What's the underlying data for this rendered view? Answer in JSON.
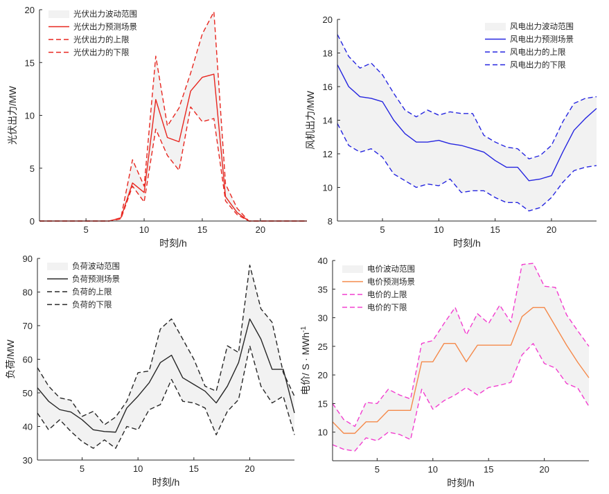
{
  "chart_data": [
    {
      "type": "area",
      "title": "",
      "xlabel": "时刻/h",
      "ylabel": "光伏出力/MW",
      "xlim": [
        1,
        24
      ],
      "ylim": [
        0,
        20
      ],
      "xticks": [
        5,
        10,
        15,
        20
      ],
      "yticks": [
        0,
        5,
        10,
        15,
        20
      ],
      "legend_position": "top-left",
      "x": [
        1,
        2,
        3,
        4,
        5,
        6,
        7,
        8,
        9,
        10,
        11,
        12,
        13,
        14,
        15,
        16,
        17,
        18,
        19,
        20,
        21,
        22,
        23,
        24
      ],
      "band": {
        "name": "光伏出力波动范围",
        "color": "#f2f2f2",
        "upper": [
          0,
          0,
          0,
          0,
          0,
          0,
          0,
          0.3,
          5.8,
          3.3,
          15.6,
          9.0,
          10.7,
          14.0,
          17.7,
          19.8,
          3.5,
          1.2,
          0,
          0,
          0,
          0,
          0,
          0
        ],
        "lower": [
          0,
          0,
          0,
          0,
          0,
          0,
          0,
          0.2,
          3.3,
          1.8,
          8.7,
          6.2,
          4.8,
          10.8,
          9.4,
          9.7,
          1.9,
          0.6,
          0,
          0,
          0,
          0,
          0,
          0
        ]
      },
      "series": [
        {
          "name": "光伏出力预测场景",
          "style": "solid",
          "color": "#e8261f",
          "values": [
            0,
            0,
            0,
            0,
            0,
            0,
            0,
            0.3,
            3.6,
            2.7,
            11.5,
            7.9,
            7.5,
            12.3,
            13.6,
            13.9,
            2.3,
            0.8,
            0,
            0,
            0,
            0,
            0,
            0
          ]
        },
        {
          "name": "光伏出力的上限",
          "style": "dashed",
          "color": "#e8261f",
          "values": [
            0,
            0,
            0,
            0,
            0,
            0,
            0,
            0.3,
            5.8,
            3.3,
            15.6,
            9.0,
            10.7,
            14.0,
            17.7,
            19.8,
            3.5,
            1.2,
            0,
            0,
            0,
            0,
            0,
            0
          ]
        },
        {
          "name": "光伏出力的下限",
          "style": "dashed",
          "color": "#e8261f",
          "values": [
            0,
            0,
            0,
            0,
            0,
            0,
            0,
            0.2,
            3.3,
            1.8,
            8.7,
            6.2,
            4.8,
            10.8,
            9.4,
            9.7,
            1.9,
            0.6,
            0,
            0,
            0,
            0,
            0,
            0
          ]
        }
      ]
    },
    {
      "type": "area",
      "title": "",
      "xlabel": "时刻/h",
      "ylabel": "风机出力/MW",
      "xlim": [
        1,
        24
      ],
      "ylim": [
        8,
        20
      ],
      "xticks": [
        5,
        10,
        15,
        20
      ],
      "yticks": [
        8,
        10,
        12,
        14,
        16,
        18,
        20
      ],
      "legend_position": "top-right",
      "x": [
        1,
        2,
        3,
        4,
        5,
        6,
        7,
        8,
        9,
        10,
        11,
        12,
        13,
        14,
        15,
        16,
        17,
        18,
        19,
        20,
        21,
        22,
        23,
        24
      ],
      "band": {
        "name": "风电出力波动范围",
        "color": "#f2f2f2",
        "upper": [
          19.1,
          17.8,
          17.1,
          17.4,
          16.7,
          15.6,
          14.6,
          14.2,
          14.6,
          14.3,
          14.5,
          14.4,
          14.4,
          13.1,
          12.7,
          12.4,
          12.3,
          11.7,
          11.9,
          12.5,
          13.9,
          15.0,
          15.3,
          15.4
        ],
        "lower": [
          13.8,
          12.5,
          12.1,
          12.3,
          11.8,
          10.8,
          10.4,
          10.0,
          10.2,
          10.1,
          10.5,
          9.7,
          9.8,
          9.8,
          9.4,
          9.1,
          9.1,
          8.6,
          8.8,
          9.4,
          10.3,
          11.0,
          11.2,
          11.3
        ]
      },
      "series": [
        {
          "name": "风电出力预测场景",
          "style": "solid",
          "color": "#2525e0",
          "values": [
            17.3,
            16.0,
            15.4,
            15.3,
            15.1,
            14.0,
            13.2,
            12.7,
            12.7,
            12.8,
            12.6,
            12.5,
            12.3,
            12.1,
            11.6,
            11.2,
            11.2,
            10.4,
            10.5,
            10.7,
            12.1,
            13.4,
            14.1,
            14.7
          ]
        },
        {
          "name": "风电出力的上限",
          "style": "dashed",
          "color": "#2525e0",
          "values": [
            19.1,
            17.8,
            17.1,
            17.4,
            16.7,
            15.6,
            14.6,
            14.2,
            14.6,
            14.3,
            14.5,
            14.4,
            14.4,
            13.1,
            12.7,
            12.4,
            12.3,
            11.7,
            11.9,
            12.5,
            13.9,
            15.0,
            15.3,
            15.4
          ]
        },
        {
          "name": "风电出力的下限",
          "style": "dashed",
          "color": "#2525e0",
          "values": [
            13.8,
            12.5,
            12.1,
            12.3,
            11.8,
            10.8,
            10.4,
            10.0,
            10.2,
            10.1,
            10.5,
            9.7,
            9.8,
            9.8,
            9.4,
            9.1,
            9.1,
            8.6,
            8.8,
            9.4,
            10.3,
            11.0,
            11.2,
            11.3
          ]
        }
      ]
    },
    {
      "type": "area",
      "title": "",
      "xlabel": "时刻/h",
      "ylabel": "负荷/MW",
      "xlim": [
        1,
        24
      ],
      "ylim": [
        30,
        90
      ],
      "xticks": [
        5,
        10,
        15,
        20
      ],
      "yticks": [
        30,
        40,
        50,
        60,
        70,
        80,
        90
      ],
      "legend_position": "top-left",
      "x": [
        1,
        2,
        3,
        4,
        5,
        6,
        7,
        8,
        9,
        10,
        11,
        12,
        13,
        14,
        15,
        16,
        17,
        18,
        19,
        20,
        21,
        22,
        23,
        24
      ],
      "band": {
        "name": "负荷波动范围",
        "color": "#f2f2f2",
        "upper": [
          57.5,
          52,
          48.5,
          47.8,
          43,
          44.5,
          40.5,
          42.8,
          47.5,
          56,
          56.5,
          69,
          72,
          66,
          60,
          52,
          50.5,
          64,
          62,
          88,
          75,
          71,
          56,
          49
        ],
        "lower": [
          44,
          39,
          42,
          38.5,
          35.5,
          33.5,
          36,
          33.5,
          40,
          39,
          45,
          46.5,
          54,
          47.5,
          47,
          45.5,
          37.5,
          44.5,
          48,
          64,
          52,
          47,
          49,
          37.5
        ]
      },
      "series": [
        {
          "name": "负荷预测场景",
          "style": "solid",
          "color": "#262626",
          "values": [
            51.5,
            47.5,
            45,
            44.3,
            42,
            39,
            38.5,
            38.3,
            45.5,
            49,
            53,
            59,
            61.2,
            54.5,
            52.5,
            50.5,
            47,
            52,
            59,
            72,
            66,
            57,
            57,
            44
          ]
        },
        {
          "name": "负荷的上限",
          "style": "dashed",
          "color": "#262626",
          "values": [
            57.5,
            52,
            48.5,
            47.8,
            43,
            44.5,
            40.5,
            42.8,
            47.5,
            56,
            56.5,
            69,
            72,
            66,
            60,
            52,
            50.5,
            64,
            62,
            88,
            75,
            71,
            56,
            49
          ]
        },
        {
          "name": "负荷的下限",
          "style": "dashed",
          "color": "#262626",
          "values": [
            44,
            39,
            42,
            38.5,
            35.5,
            33.5,
            36,
            33.5,
            40,
            39,
            45,
            46.5,
            54,
            47.5,
            47,
            45.5,
            37.5,
            44.5,
            48,
            64,
            52,
            47,
            49,
            37.5
          ]
        }
      ]
    },
    {
      "type": "area",
      "title": "",
      "xlabel": "时刻/h",
      "ylabel": "电价/ S · MWh",
      "ylabel_sup": "-1",
      "xlim": [
        1,
        24
      ],
      "ylim": [
        5,
        40
      ],
      "xticks": [
        5,
        10,
        15,
        20
      ],
      "yticks": [
        10,
        15,
        20,
        25,
        30,
        35,
        40
      ],
      "legend_position": "top-left",
      "x": [
        1,
        2,
        3,
        4,
        5,
        6,
        7,
        8,
        9,
        10,
        11,
        12,
        13,
        14,
        15,
        16,
        17,
        18,
        19,
        20,
        21,
        22,
        23,
        24
      ],
      "band": {
        "name": "电价波动范围",
        "color": "#f2f2f2",
        "upper": [
          15,
          12.2,
          11,
          15.2,
          15,
          17.5,
          16.5,
          15.8,
          25.5,
          26,
          29,
          31.8,
          27,
          30.7,
          29,
          32.2,
          29.2,
          39.3,
          39.5,
          35.5,
          35.3,
          30.5,
          27.7,
          25
        ],
        "lower": [
          7.8,
          7,
          6.7,
          9,
          8.5,
          10,
          9.6,
          8.7,
          17.5,
          14,
          15.5,
          16.5,
          17.8,
          16.5,
          17.8,
          18.2,
          18.7,
          23.5,
          25.5,
          22,
          21.2,
          18.5,
          17.7,
          14.5
        ]
      },
      "series": [
        {
          "name": "电价预测场景",
          "style": "solid",
          "color": "#f5894a",
          "values": [
            11.8,
            9.8,
            9.8,
            11.8,
            11.8,
            13.8,
            13.8,
            13.8,
            22.3,
            22.3,
            25.5,
            25.5,
            22.3,
            25.2,
            25.2,
            25.2,
            25.2,
            30.2,
            31.8,
            31.8,
            28.5,
            25.2,
            22.2,
            19.5
          ]
        },
        {
          "name": "电价的上限",
          "style": "dashed",
          "color": "#f23ecf",
          "values": [
            15,
            12.2,
            11,
            15.2,
            15,
            17.5,
            16.5,
            15.8,
            25.5,
            26,
            29,
            31.8,
            27,
            30.7,
            29,
            32.2,
            29.2,
            39.3,
            39.5,
            35.5,
            35.3,
            30.5,
            27.7,
            25
          ]
        },
        {
          "name": "电价的下限",
          "style": "dashed",
          "color": "#f23ecf",
          "values": [
            7.8,
            7,
            6.7,
            9,
            8.5,
            10,
            9.6,
            8.7,
            17.5,
            14,
            15.5,
            16.5,
            17.8,
            16.5,
            17.8,
            18.2,
            18.7,
            23.5,
            25.5,
            22,
            21.2,
            18.5,
            17.7,
            14.5
          ]
        }
      ]
    }
  ]
}
